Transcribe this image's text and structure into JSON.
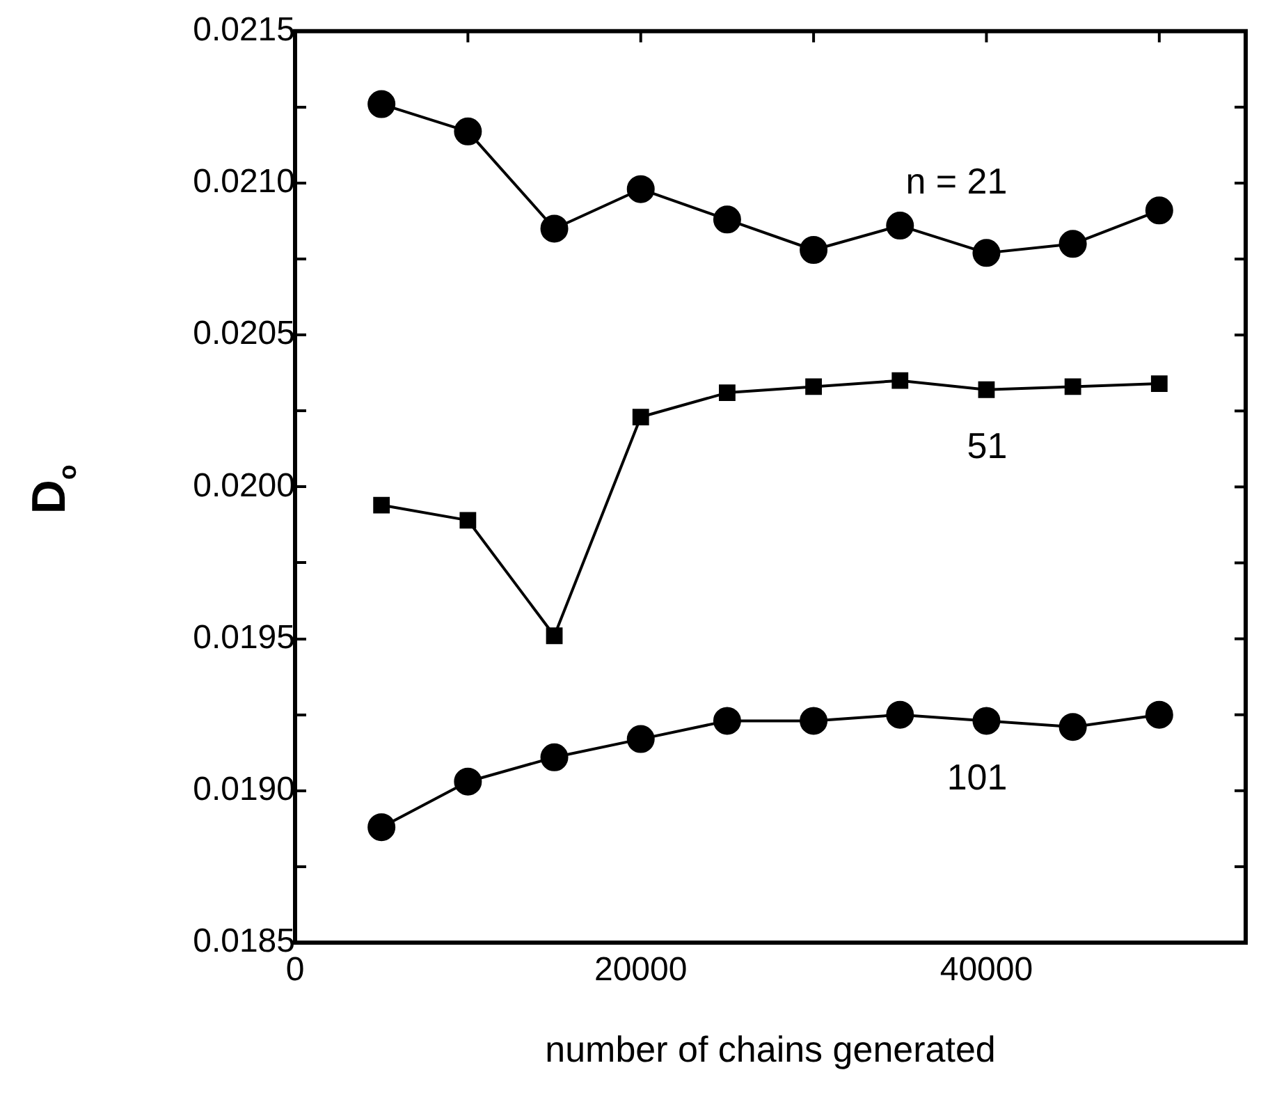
{
  "chart_data": {
    "type": "line",
    "xlabel": "number of chains generated",
    "ylabel": "D$_{o}$",
    "x": [
      5000,
      10000,
      15000,
      20000,
      25000,
      30000,
      35000,
      40000,
      45000,
      50000
    ],
    "xlim": [
      0,
      55000
    ],
    "xticks": [
      0,
      {
        "value": 10000,
        "label": null
      },
      20000,
      {
        "value": 30000,
        "label": null
      },
      40000,
      {
        "value": 50000,
        "label": null
      }
    ],
    "ylim": [
      0.0185,
      0.0215
    ],
    "yticks": [
      0.0185,
      {
        "value": 0.01875,
        "label": null
      },
      {
        "value": 0.019,
        "label": "0.0190"
      },
      {
        "value": 0.01925,
        "label": null
      },
      0.0195,
      {
        "value": 0.01975,
        "label": null
      },
      {
        "value": 0.02,
        "label": "0.0200"
      },
      {
        "value": 0.02025,
        "label": null
      },
      0.0205,
      {
        "value": 0.02075,
        "label": null
      },
      {
        "value": 0.021,
        "label": "0.0210"
      },
      {
        "value": 0.02125,
        "label": null
      },
      0.0215
    ],
    "grid": false,
    "legend": false,
    "line_style": "solid",
    "series": [
      {
        "name": "n = 21",
        "color": "#000000",
        "marker": "circle",
        "values": [
          0.02126,
          0.02117,
          0.02085,
          0.02098,
          0.02088,
          0.02078,
          0.02086,
          0.02077,
          0.0208,
          0.02091
        ]
      },
      {
        "name": "51",
        "color": "#000000",
        "marker": "square",
        "values": [
          0.01994,
          0.01989,
          0.01951,
          0.02023,
          0.02031,
          0.02033,
          0.02035,
          0.02032,
          0.02033,
          0.02034
        ]
      },
      {
        "name": "101",
        "color": "#000000",
        "marker": "circle",
        "values": [
          0.01888,
          0.01903,
          0.01911,
          0.01917,
          0.01923,
          0.01923,
          0.01925,
          0.01923,
          0.01921,
          0.01925
        ]
      }
    ]
  }
}
